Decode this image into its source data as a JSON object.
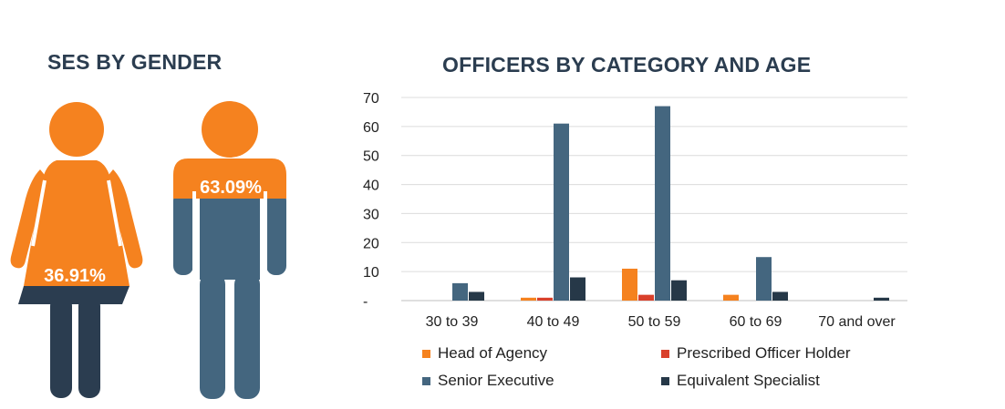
{
  "infographic": {
    "title": "SES BY GENDER",
    "female_pct": "36.91%",
    "male_pct": "63.09%",
    "female_value": 36.91,
    "male_value": 63.09
  },
  "colors": {
    "orange": "#f5821f",
    "female_dark": "#2b3d50",
    "male_slate": "#44667f"
  },
  "chart_data": {
    "type": "bar",
    "title": "OFFICERS BY CATEGORY AND AGE",
    "categories": [
      "30 to 39",
      "40 to 49",
      "50 to 59",
      "60 to 69",
      "70 and over"
    ],
    "series": [
      {
        "name": "Head of Agency",
        "color": "#f5821f",
        "values": [
          0,
          1,
          11,
          2,
          0
        ]
      },
      {
        "name": "Prescribed Officer Holder",
        "color": "#d9402b",
        "values": [
          0,
          1,
          2,
          0,
          0
        ]
      },
      {
        "name": "Senior Executive",
        "color": "#44667f",
        "values": [
          6,
          61,
          67,
          15,
          0
        ]
      },
      {
        "name": "Equivalent Specialist",
        "color": "#263848",
        "values": [
          3,
          8,
          7,
          3,
          1
        ]
      }
    ],
    "yticks": [
      "-",
      "10",
      "20",
      "30",
      "40",
      "50",
      "60",
      "70"
    ],
    "ylim": [
      0,
      70
    ],
    "grid": true,
    "legend_position": "bottom"
  }
}
